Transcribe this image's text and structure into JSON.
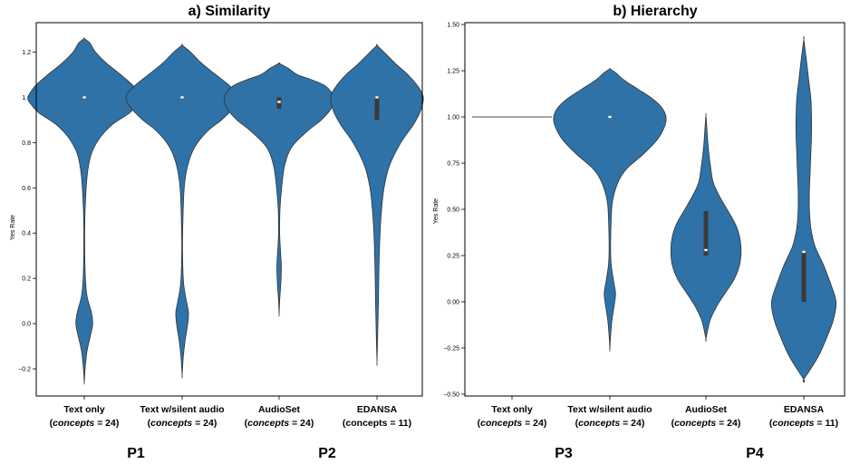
{
  "panels": [
    {
      "title": "a) Similarity",
      "ylabel": "Yes Rate",
      "yticks": [
        "−0.2",
        "0.0",
        "0.2",
        "0.4",
        "0.6",
        "0.8",
        "1.0",
        "1.2"
      ],
      "xticks": [
        {
          "line1": "Text only",
          "open": "(",
          "italic": "concepts",
          "rest": " = 24)"
        },
        {
          "line1": "Text w/silent audio",
          "open": "(",
          "italic": "concepts",
          "rest": " = 24)"
        },
        {
          "line1": "AudioSet",
          "open": "(",
          "italic": "concepts",
          "rest": " = 24)"
        },
        {
          "line1": "EDANSA",
          "open": "",
          "italic": "",
          "rest": "(concepts = 11)"
        }
      ]
    },
    {
      "title": "b) Hierarchy",
      "ylabel": "Yes Rate",
      "yticks": [
        "−0.50",
        "−0.25",
        "0.00",
        "0.25",
        "0.50",
        "0.75",
        "1.00",
        "1.25",
        "1.50"
      ],
      "xticks": [
        {
          "line1": "Text only",
          "open": "(",
          "italic": "concepts",
          "rest": " = 24)"
        },
        {
          "line1": "Text w/silent audio",
          "open": "(",
          "italic": "concepts",
          "rest": " = 24)"
        },
        {
          "line1": "AudioSet",
          "open": "(",
          "italic": "concepts",
          "rest": " = 24)"
        },
        {
          "line1": "EDANSA",
          "open": "(",
          "italic": "concepts",
          "rest": " = 11)"
        }
      ]
    }
  ],
  "bottom_labels": [
    "P1",
    "P2",
    "P3",
    "P4"
  ],
  "colors": {
    "violin": "#2e72a8",
    "edge": "#333333",
    "box": "#3a3a3a",
    "median": "#ffffff"
  },
  "chart_data": [
    {
      "type": "violin",
      "title": "a) Similarity",
      "ylabel": "Yes Rate",
      "ylim": [
        -0.32,
        1.33
      ],
      "grid": false,
      "categories": [
        "Text only (concepts = 24)",
        "Text w/silent audio (concepts = 24)",
        "AudioSet (concepts = 24)",
        "EDANSA (concepts = 11)"
      ],
      "series": [
        {
          "range": [
            -0.26,
            1.26
          ],
          "quartiles": [
            1.0,
            1.0,
            1.0
          ],
          "density": [
            [
              -0.26,
              0
            ],
            [
              -0.2,
              0.006
            ],
            [
              -0.12,
              0.02
            ],
            [
              -0.05,
              0.045
            ],
            [
              0.0,
              0.06
            ],
            [
              0.05,
              0.05
            ],
            [
              0.12,
              0.02
            ],
            [
              0.2,
              0.008
            ],
            [
              0.35,
              0.003
            ],
            [
              0.5,
              0.006
            ],
            [
              0.65,
              0.02
            ],
            [
              0.75,
              0.05
            ],
            [
              0.82,
              0.11
            ],
            [
              0.88,
              0.2
            ],
            [
              0.93,
              0.32
            ],
            [
              0.97,
              0.38
            ],
            [
              1.0,
              0.4
            ],
            [
              1.05,
              0.35
            ],
            [
              1.1,
              0.26
            ],
            [
              1.15,
              0.16
            ],
            [
              1.2,
              0.08
            ],
            [
              1.24,
              0.04
            ],
            [
              1.26,
              0
            ]
          ]
        },
        {
          "range": [
            -0.23,
            1.23
          ],
          "quartiles": [
            1.0,
            1.0,
            1.0
          ],
          "density": [
            [
              -0.23,
              0
            ],
            [
              -0.15,
              0.008
            ],
            [
              -0.08,
              0.02
            ],
            [
              0.0,
              0.04
            ],
            [
              0.05,
              0.045
            ],
            [
              0.1,
              0.03
            ],
            [
              0.18,
              0.01
            ],
            [
              0.3,
              0.003
            ],
            [
              0.45,
              0.005
            ],
            [
              0.6,
              0.015
            ],
            [
              0.7,
              0.04
            ],
            [
              0.78,
              0.09
            ],
            [
              0.85,
              0.18
            ],
            [
              0.9,
              0.28
            ],
            [
              0.95,
              0.36
            ],
            [
              1.0,
              0.4
            ],
            [
              1.05,
              0.34
            ],
            [
              1.1,
              0.24
            ],
            [
              1.15,
              0.14
            ],
            [
              1.2,
              0.06
            ],
            [
              1.23,
              0
            ]
          ]
        },
        {
          "range": [
            0.04,
            1.15
          ],
          "quartiles": [
            0.95,
            0.98,
            1.0
          ],
          "density": [
            [
              0.04,
              0
            ],
            [
              0.1,
              0.004
            ],
            [
              0.18,
              0.012
            ],
            [
              0.25,
              0.016
            ],
            [
              0.32,
              0.01
            ],
            [
              0.4,
              0.004
            ],
            [
              0.5,
              0.006
            ],
            [
              0.6,
              0.018
            ],
            [
              0.7,
              0.04
            ],
            [
              0.78,
              0.09
            ],
            [
              0.85,
              0.2
            ],
            [
              0.9,
              0.3
            ],
            [
              0.95,
              0.37
            ],
            [
              1.0,
              0.39
            ],
            [
              1.05,
              0.33
            ],
            [
              1.08,
              0.22
            ],
            [
              1.1,
              0.13
            ],
            [
              1.13,
              0.06
            ],
            [
              1.15,
              0
            ]
          ]
        },
        {
          "range": [
            -0.17,
            1.23
          ],
          "quartiles": [
            0.9,
            1.0,
            1.0
          ],
          "density": [
            [
              -0.17,
              0
            ],
            [
              -0.05,
              0.005
            ],
            [
              0.1,
              0.01
            ],
            [
              0.25,
              0.014
            ],
            [
              0.4,
              0.022
            ],
            [
              0.5,
              0.032
            ],
            [
              0.6,
              0.05
            ],
            [
              0.7,
              0.09
            ],
            [
              0.8,
              0.17
            ],
            [
              0.88,
              0.26
            ],
            [
              0.94,
              0.31
            ],
            [
              1.0,
              0.33
            ],
            [
              1.05,
              0.29
            ],
            [
              1.1,
              0.22
            ],
            [
              1.15,
              0.13
            ],
            [
              1.2,
              0.05
            ],
            [
              1.23,
              0
            ]
          ]
        }
      ]
    },
    {
      "type": "violin",
      "title": "b) Hierarchy",
      "ylabel": "Yes Rate",
      "ylim": [
        -0.51,
        1.51
      ],
      "grid": false,
      "categories": [
        "Text only (concepts = 24)",
        "Text w/silent audio (concepts = 24)",
        "AudioSet (concepts = 24)",
        "EDANSA (concepts = 11)"
      ],
      "series": [
        {
          "range": [
            1.0,
            1.0
          ],
          "quartiles": [
            1.0,
            1.0,
            1.0
          ],
          "density": []
        },
        {
          "range": [
            -0.26,
            1.26
          ],
          "quartiles": [
            1.0,
            1.0,
            1.0
          ],
          "density": [
            [
              -0.26,
              0
            ],
            [
              -0.2,
              0.004
            ],
            [
              -0.1,
              0.015
            ],
            [
              0.0,
              0.035
            ],
            [
              0.05,
              0.04
            ],
            [
              0.12,
              0.025
            ],
            [
              0.2,
              0.01
            ],
            [
              0.3,
              0.005
            ],
            [
              0.45,
              0.01
            ],
            [
              0.55,
              0.02
            ],
            [
              0.65,
              0.06
            ],
            [
              0.72,
              0.12
            ],
            [
              0.8,
              0.24
            ],
            [
              0.88,
              0.34
            ],
            [
              0.95,
              0.39
            ],
            [
              1.0,
              0.4
            ],
            [
              1.05,
              0.37
            ],
            [
              1.1,
              0.3
            ],
            [
              1.15,
              0.2
            ],
            [
              1.2,
              0.1
            ],
            [
              1.24,
              0.04
            ],
            [
              1.26,
              0
            ]
          ]
        },
        {
          "range": [
            -0.2,
            1.01
          ],
          "quartiles": [
            0.25,
            0.28,
            0.49
          ],
          "density": [
            [
              -0.2,
              0
            ],
            [
              -0.1,
              0.03
            ],
            [
              -0.02,
              0.08
            ],
            [
              0.05,
              0.14
            ],
            [
              0.12,
              0.2
            ],
            [
              0.2,
              0.24
            ],
            [
              0.28,
              0.25
            ],
            [
              0.35,
              0.24
            ],
            [
              0.42,
              0.21
            ],
            [
              0.5,
              0.15
            ],
            [
              0.58,
              0.09
            ],
            [
              0.65,
              0.05
            ],
            [
              0.75,
              0.03
            ],
            [
              0.85,
              0.015
            ],
            [
              0.95,
              0.006
            ],
            [
              1.01,
              0
            ]
          ]
        },
        {
          "range": [
            -0.42,
            1.42
          ],
          "quartiles": [
            0.0,
            0.27,
            0.27
          ],
          "density": [
            [
              -0.42,
              0
            ],
            [
              -0.3,
              0.1
            ],
            [
              -0.2,
              0.16
            ],
            [
              -0.1,
              0.21
            ],
            [
              0.0,
              0.23
            ],
            [
              0.1,
              0.19
            ],
            [
              0.2,
              0.14
            ],
            [
              0.3,
              0.08
            ],
            [
              0.4,
              0.05
            ],
            [
              0.5,
              0.04
            ],
            [
              0.6,
              0.04
            ],
            [
              0.7,
              0.045
            ],
            [
              0.8,
              0.05
            ],
            [
              0.9,
              0.055
            ],
            [
              1.0,
              0.055
            ],
            [
              1.1,
              0.05
            ],
            [
              1.2,
              0.035
            ],
            [
              1.3,
              0.02
            ],
            [
              1.42,
              0
            ]
          ]
        }
      ]
    }
  ]
}
